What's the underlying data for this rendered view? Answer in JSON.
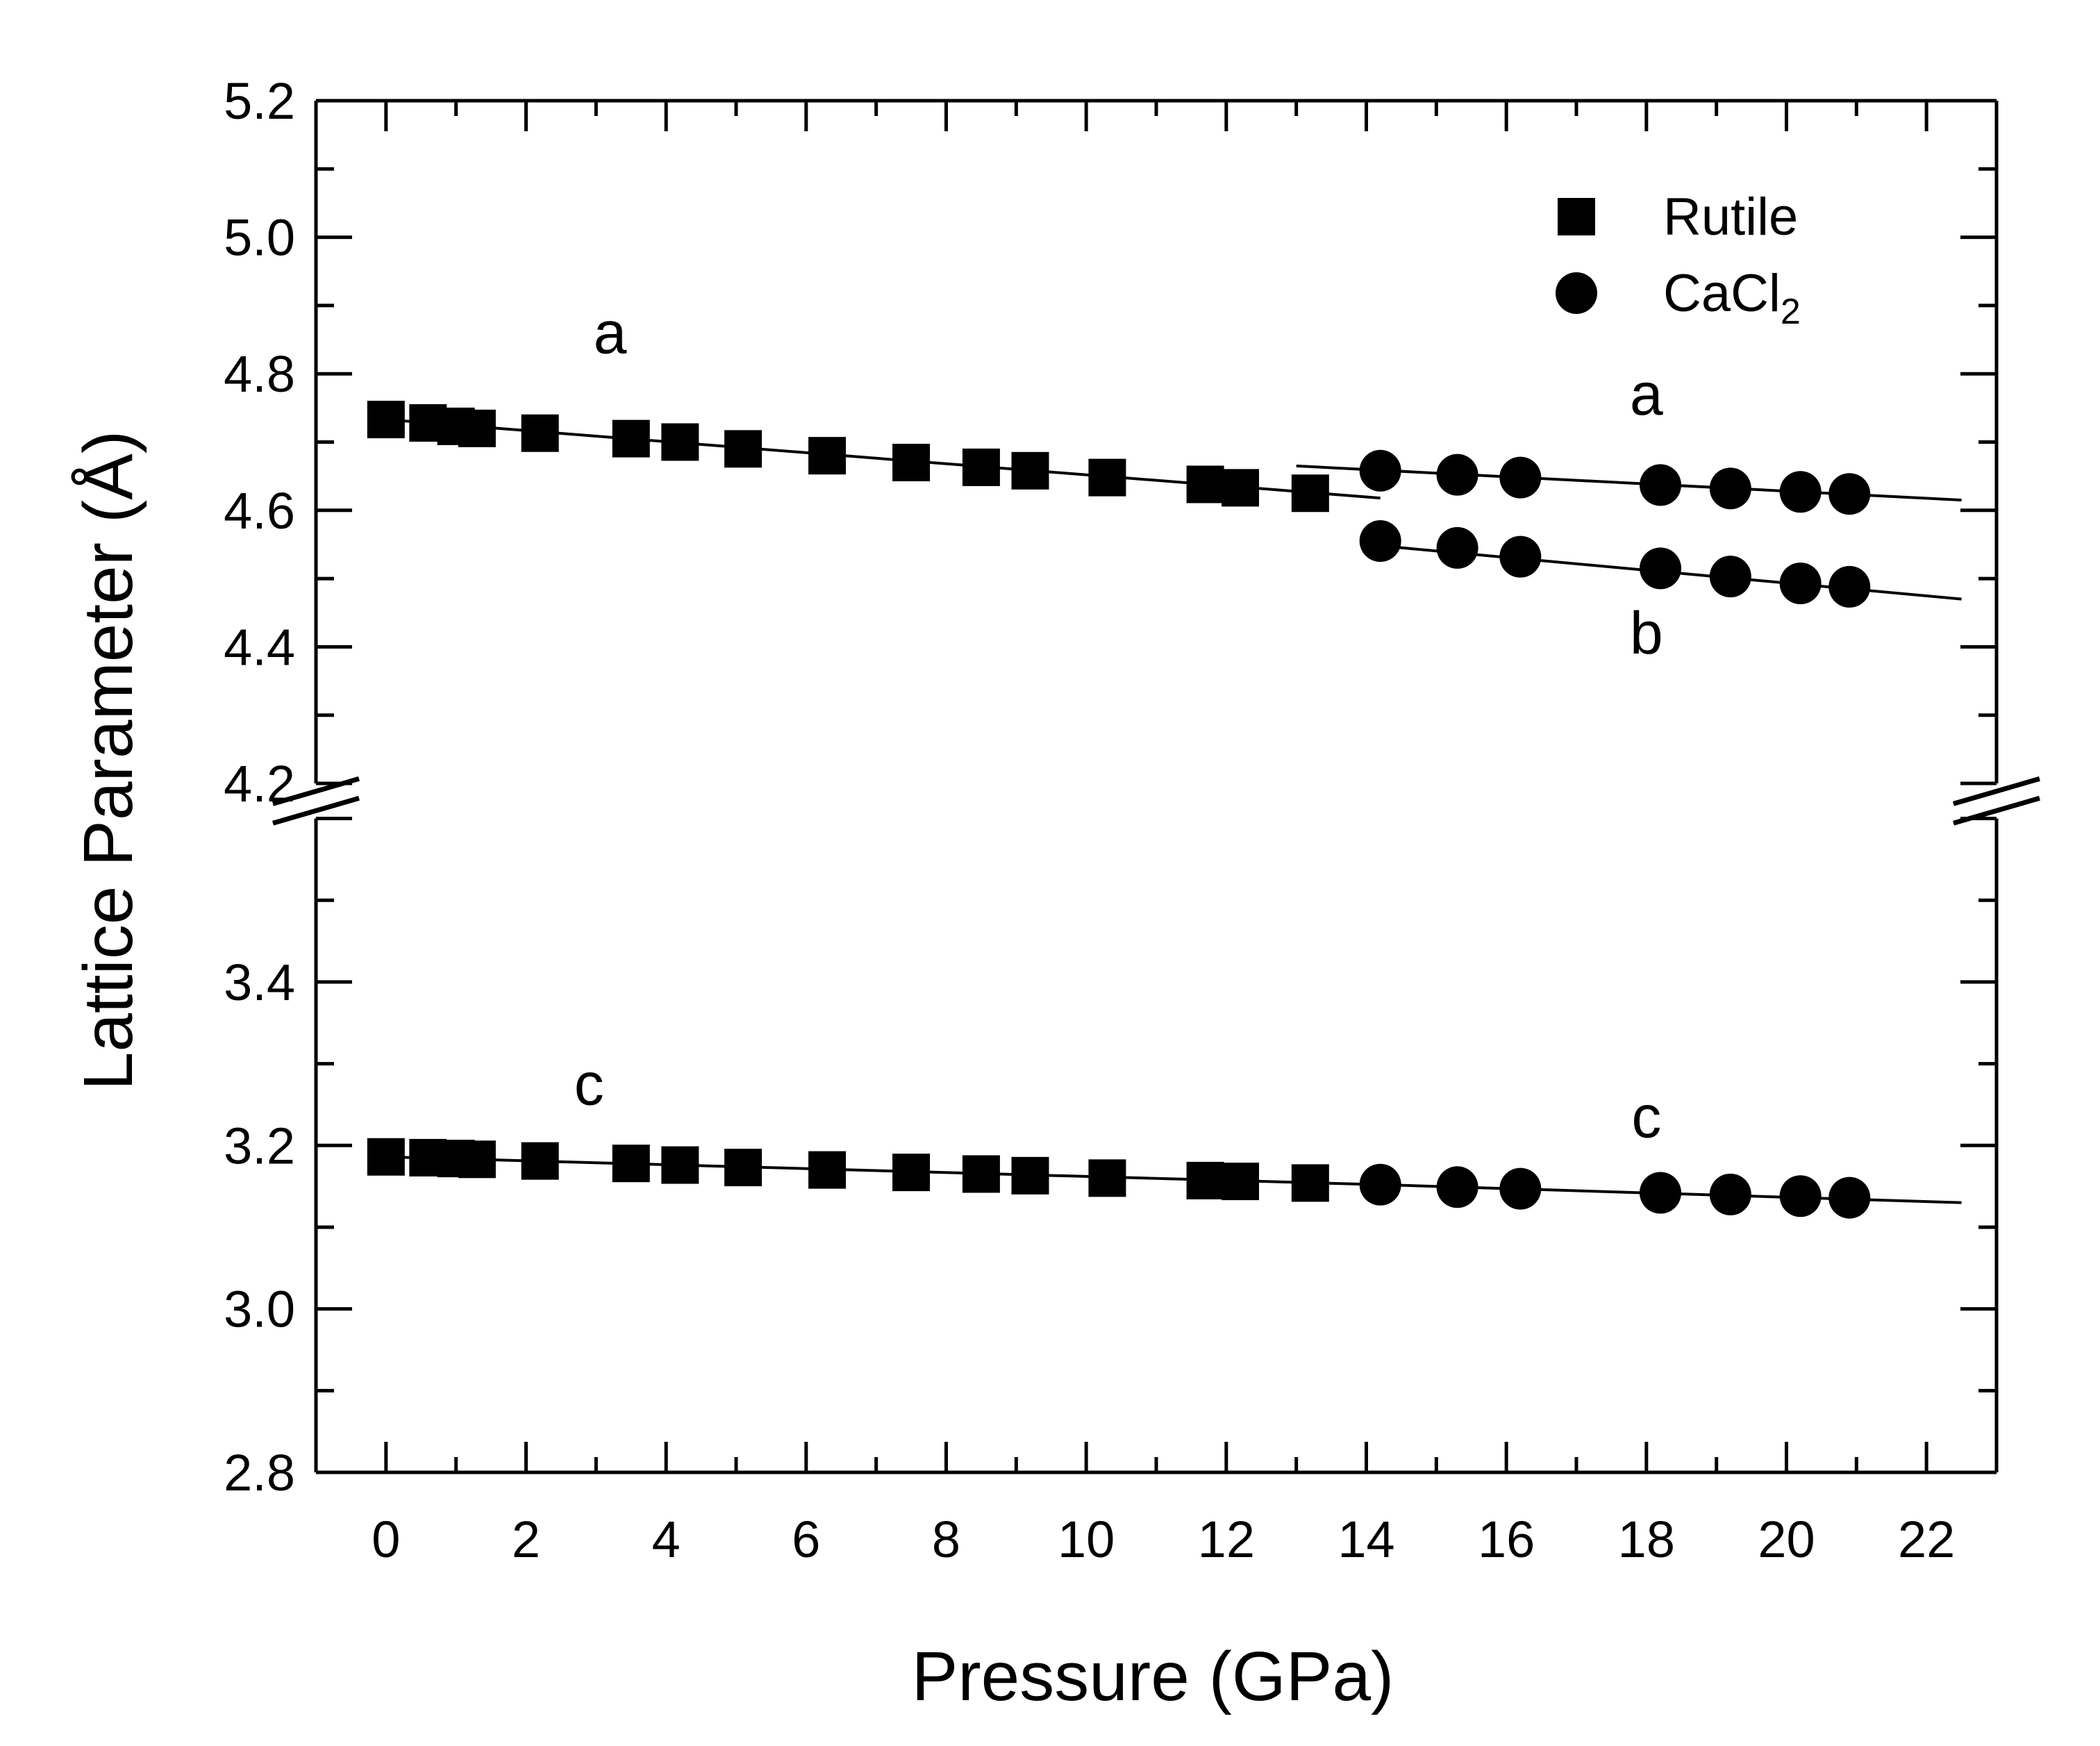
{
  "chart_data": {
    "type": "scatter",
    "title": "",
    "xlabel": "Pressure (GPa)",
    "ylabel": "Lattice Parameter (Å)",
    "xlim": [
      -1,
      23
    ],
    "ylim_upper": [
      4.2,
      5.2
    ],
    "ylim_lower": [
      2.8,
      3.6
    ],
    "axis_break": "between 3.6 and 4.2",
    "x_ticks": [
      "0",
      "2",
      "4",
      "6",
      "8",
      "10",
      "12",
      "14",
      "16",
      "18",
      "20",
      "22"
    ],
    "y_ticks_upper": [
      "4.2",
      "4.4",
      "4.6",
      "4.8",
      "5.0",
      "5.2"
    ],
    "y_ticks_lower": [
      "2.8",
      "3.0",
      "3.2",
      "3.4"
    ],
    "legend": {
      "position": "top-right",
      "items": [
        {
          "marker": "square",
          "label": "Rutile",
          "subscript": ""
        },
        {
          "marker": "circle",
          "label": "CaCl",
          "subscript": "2"
        }
      ]
    },
    "annotations": [
      {
        "text": "a",
        "x": 3.2,
        "y": 4.83
      },
      {
        "text": "a",
        "x": 18.0,
        "y": 4.74
      },
      {
        "text": "b",
        "x": 18.0,
        "y": 4.39
      },
      {
        "text": "c",
        "x": 2.9,
        "y": 3.25
      },
      {
        "text": "c",
        "x": 18.0,
        "y": 3.21
      }
    ],
    "series": [
      {
        "name": "Rutile a",
        "phase": "Rutile",
        "marker": "square",
        "x": [
          0.0,
          0.6,
          1.0,
          1.3,
          2.2,
          3.5,
          4.2,
          5.1,
          6.3,
          7.5,
          8.5,
          9.2,
          10.3,
          11.7,
          12.2,
          13.2
        ],
        "y": [
          4.733,
          4.728,
          4.723,
          4.72,
          4.713,
          4.705,
          4.7,
          4.69,
          4.68,
          4.67,
          4.663,
          4.658,
          4.648,
          4.638,
          4.633,
          4.625
        ]
      },
      {
        "name": "Rutile c",
        "phase": "Rutile",
        "marker": "square",
        "x": [
          0.0,
          0.6,
          1.0,
          1.3,
          2.2,
          3.5,
          4.2,
          5.1,
          6.3,
          7.5,
          8.5,
          9.2,
          10.3,
          11.7,
          12.2,
          13.2
        ],
        "y": [
          3.186,
          3.185,
          3.184,
          3.183,
          3.181,
          3.178,
          3.176,
          3.173,
          3.17,
          3.167,
          3.165,
          3.163,
          3.16,
          3.157,
          3.156,
          3.154
        ]
      },
      {
        "name": "CaCl2 a",
        "phase": "CaCl2",
        "marker": "circle",
        "x": [
          14.2,
          15.3,
          16.2,
          18.2,
          19.2,
          20.2,
          20.9
        ],
        "y": [
          4.658,
          4.652,
          4.648,
          4.637,
          4.632,
          4.627,
          4.624
        ]
      },
      {
        "name": "CaCl2 b",
        "phase": "CaCl2",
        "marker": "circle",
        "x": [
          14.2,
          15.3,
          16.2,
          18.2,
          19.2,
          20.2,
          20.9
        ],
        "y": [
          4.555,
          4.545,
          4.532,
          4.515,
          4.503,
          4.493,
          4.488
        ]
      },
      {
        "name": "CaCl2 c",
        "phase": "CaCl2",
        "marker": "circle",
        "x": [
          14.2,
          15.3,
          16.2,
          18.2,
          19.2,
          20.2,
          20.9
        ],
        "y": [
          3.152,
          3.149,
          3.147,
          3.142,
          3.14,
          3.138,
          3.136
        ]
      }
    ],
    "fit_lines": [
      {
        "name": "Rutile a fit",
        "x": [
          0.0,
          14.2
        ],
        "y": [
          4.733,
          4.618
        ]
      },
      {
        "name": "Rutile c fit",
        "x": [
          0.0,
          14.2
        ],
        "y": [
          3.186,
          3.152
        ]
      },
      {
        "name": "CaCl2 a fit",
        "x": [
          13.0,
          22.5
        ],
        "y": [
          4.665,
          4.615
        ]
      },
      {
        "name": "CaCl2 b fit",
        "x": [
          14.2,
          22.5
        ],
        "y": [
          4.548,
          4.47
        ]
      },
      {
        "name": "CaCl2 c fit",
        "x": [
          14.2,
          22.5
        ],
        "y": [
          3.152,
          3.13
        ]
      }
    ]
  }
}
